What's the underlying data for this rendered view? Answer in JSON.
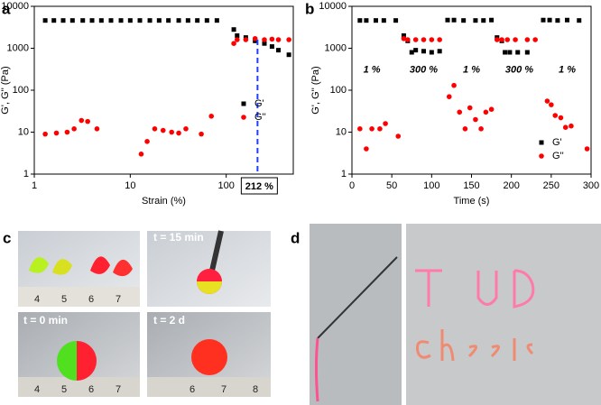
{
  "chart_data": [
    {
      "type": "scatter",
      "panel_label": "a",
      "xlabel": "Strain (%)",
      "ylabel": "G', G'' (Pa)",
      "xscale": "log",
      "yscale": "log",
      "xlim": [
        1,
        500
      ],
      "ylim": [
        1,
        10000
      ],
      "xticks": [
        1,
        10,
        100
      ],
      "yticks": [
        1,
        10,
        100,
        1000,
        10000
      ],
      "legend": "right",
      "series": [
        {
          "name": "G'",
          "color": "#000000",
          "marker": "square",
          "x": [
            1.3,
            1.6,
            2,
            2.5,
            3.2,
            4,
            5,
            6.3,
            8,
            10,
            12.6,
            16,
            20,
            25,
            32,
            40,
            50,
            63,
            80,
            120,
            130,
            160,
            200,
            250,
            300,
            350,
            450
          ],
          "values": [
            4600,
            4600,
            4600,
            4600,
            4600,
            4600,
            4600,
            4600,
            4600,
            4600,
            4600,
            4600,
            4600,
            4600,
            4600,
            4600,
            4600,
            4600,
            4600,
            2800,
            2000,
            1800,
            1500,
            1300,
            1100,
            900,
            700
          ]
        },
        {
          "name": "G''",
          "color": "#ff0000",
          "marker": "circle",
          "x": [
            1.3,
            1.7,
            2.2,
            2.6,
            3.1,
            3.6,
            4.5,
            13,
            15,
            18,
            22,
            27,
            32,
            38,
            55,
            70,
            120,
            130,
            160,
            200,
            250,
            300,
            350,
            450
          ],
          "values": [
            9,
            9.5,
            10,
            12,
            19,
            18,
            12,
            3,
            6,
            12,
            11,
            10,
            9.5,
            12,
            9,
            24,
            1300,
            1600,
            1600,
            1700,
            1600,
            1650,
            1600,
            1600
          ]
        }
      ],
      "annotations": [
        {
          "text": "212 %",
          "x": 212,
          "color": "#1f3fff"
        }
      ]
    },
    {
      "type": "scatter",
      "panel_label": "b",
      "xlabel": "Time (s)",
      "ylabel": "G', G'' (Pa)",
      "xscale": "linear",
      "yscale": "log",
      "xlim": [
        0,
        300
      ],
      "ylim": [
        1,
        10000
      ],
      "xticks": [
        0,
        50,
        100,
        150,
        200,
        250,
        300
      ],
      "yticks": [
        1,
        10,
        100,
        1000,
        10000
      ],
      "legend": "lower right",
      "series": [
        {
          "name": "G'",
          "color": "#000000",
          "marker": "square",
          "x": [
            10,
            18,
            30,
            40,
            55,
            65,
            70,
            75,
            80,
            90,
            100,
            110,
            120,
            128,
            140,
            155,
            165,
            175,
            182,
            188,
            192,
            198,
            208,
            220,
            240,
            248,
            258,
            270,
            285
          ],
          "values": [
            4600,
            4600,
            4600,
            4600,
            4600,
            2000,
            1500,
            800,
            900,
            850,
            800,
            850,
            4700,
            4700,
            4600,
            4600,
            4600,
            4700,
            1800,
            1500,
            800,
            800,
            800,
            800,
            4700,
            4700,
            4600,
            4700,
            4600
          ]
        },
        {
          "name": "G''",
          "color": "#ff0000",
          "marker": "circle",
          "x": [
            10,
            18,
            25,
            35,
            42,
            58,
            65,
            70,
            80,
            90,
            100,
            110,
            122,
            128,
            135,
            142,
            148,
            155,
            162,
            168,
            175,
            182,
            188,
            195,
            205,
            220,
            230,
            245,
            250,
            255,
            262,
            268,
            275,
            295
          ],
          "values": [
            12,
            4,
            12,
            12,
            16,
            8,
            1700,
            1600,
            1600,
            1600,
            1600,
            1600,
            70,
            130,
            30,
            12,
            38,
            20,
            12,
            30,
            35,
            1600,
            1600,
            1600,
            1600,
            1600,
            1600,
            55,
            45,
            25,
            22,
            13,
            14,
            4
          ]
        }
      ],
      "annotations": [
        {
          "text": "1 %",
          "x": 25,
          "y": 300,
          "color": "#000000"
        },
        {
          "text": "300 %",
          "x": 90,
          "y": 300,
          "color": "#ff0000"
        },
        {
          "text": "1 %",
          "x": 150,
          "y": 300,
          "color": "#000000"
        },
        {
          "text": "300 %",
          "x": 210,
          "y": 300,
          "color": "#ff0000"
        },
        {
          "text": "1 %",
          "x": 270,
          "y": 300,
          "color": "#000000"
        }
      ]
    }
  ],
  "photos": {
    "panel_c": "c",
    "panel_d": "d",
    "captions": [
      "t = 15 min",
      "t = 0 min",
      "t = 2 d"
    ],
    "ruler_top": [
      "4",
      "5",
      "6",
      "7"
    ],
    "ruler_bottom_left": [
      "4",
      "5",
      "6",
      "7"
    ],
    "ruler_bottom_right": [
      "6",
      "7",
      "8"
    ]
  }
}
